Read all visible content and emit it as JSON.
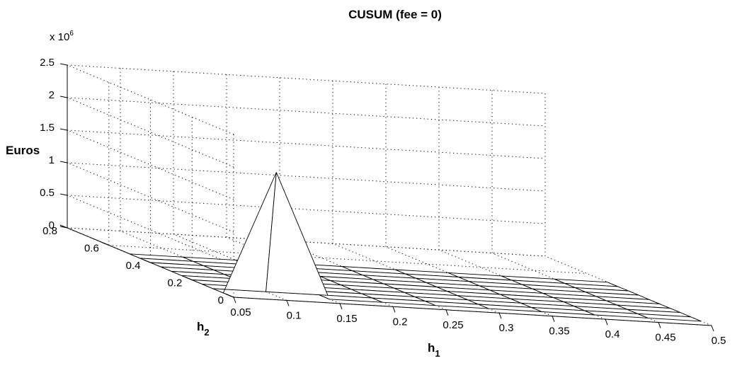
{
  "chart_data": {
    "type": "surface",
    "title": "CUSUM (fee = 0)",
    "xlabel": "h",
    "xlabel_sub": "1",
    "ylabel": "h",
    "ylabel_sub": "2",
    "zlabel": "Euros",
    "z_multiplier": "x 10",
    "z_multiplier_exp": "6",
    "x_ticks": [
      "0.05",
      "0.1",
      "0.15",
      "0.2",
      "0.25",
      "0.3",
      "0.35",
      "0.4",
      "0.45",
      "0.5"
    ],
    "y_ticks": [
      "0",
      "0.2",
      "0.4",
      "0.6",
      "0.8"
    ],
    "z_ticks": [
      "0",
      "0.5",
      "1",
      "1.5",
      "2",
      "2.5"
    ],
    "xlim": [
      0.05,
      0.5
    ],
    "ylim": [
      0,
      0.8
    ],
    "zlim": [
      0,
      2.5
    ],
    "grid": true,
    "surface": {
      "x": [
        0.05,
        0.1,
        0.15,
        0.2,
        0.25,
        0.3,
        0.35,
        0.4,
        0.45,
        0.5
      ],
      "y": [
        0.05,
        0.1,
        0.15,
        0.2,
        0.25,
        0.3,
        0.35,
        0.4,
        0.45,
        0.5
      ],
      "z_peak": {
        "x": 0.1,
        "y": 0.05,
        "value": 1.9
      },
      "z_elsewhere": 0
    }
  }
}
